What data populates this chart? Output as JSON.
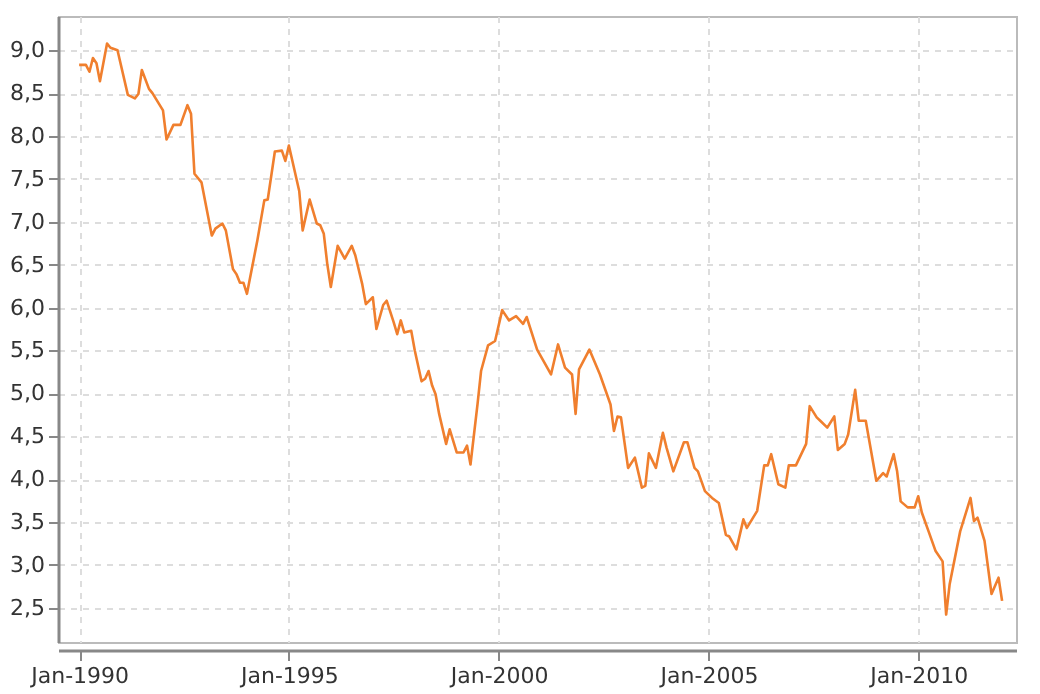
{
  "chart_data": {
    "type": "line",
    "x": [
      "1990-01",
      "1990-03",
      "1990-04",
      "1990-05",
      "1990-06",
      "1990-07",
      "1990-09",
      "1990-10",
      "1990-12",
      "1991-03",
      "1991-05",
      "1991-06",
      "1991-07",
      "1991-09",
      "1991-10",
      "1992-01",
      "1992-02",
      "1992-04",
      "1992-06",
      "1992-08",
      "1992-09",
      "1992-10",
      "1992-12",
      "1993-03",
      "1993-04",
      "1993-06",
      "1993-07",
      "1993-09",
      "1993-10",
      "1993-11",
      "1993-12",
      "1994-01",
      "1994-04",
      "1994-06",
      "1994-07",
      "1994-09",
      "1994-11",
      "1994-12",
      "1995-01",
      "1995-04",
      "1995-05",
      "1995-07",
      "1995-09",
      "1995-10",
      "1995-11",
      "1995-12",
      "1996-01",
      "1996-03",
      "1996-05",
      "1996-07",
      "1996-08",
      "1996-10",
      "1996-11",
      "1997-01",
      "1997-02",
      "1997-04",
      "1997-05",
      "1997-07",
      "1997-08",
      "1997-09",
      "1997-10",
      "1997-12",
      "1998-01",
      "1998-03",
      "1998-04",
      "1998-05",
      "1998-06",
      "1998-07",
      "1998-08",
      "1998-10",
      "1998-11",
      "1999-01",
      "1999-03",
      "1999-04",
      "1999-05",
      "1999-07",
      "1999-08",
      "1999-10",
      "1999-12",
      "2000-02",
      "2000-04",
      "2000-06",
      "2000-08",
      "2000-09",
      "2000-12",
      "2001-04",
      "2001-06",
      "2001-08",
      "2001-10",
      "2001-11",
      "2001-12",
      "2002-03",
      "2002-06",
      "2002-09",
      "2002-10",
      "2002-11",
      "2002-12",
      "2003-02",
      "2003-04",
      "2003-06",
      "2003-07",
      "2003-08",
      "2003-10",
      "2003-12",
      "2004-01",
      "2004-03",
      "2004-06",
      "2004-07",
      "2004-09",
      "2004-10",
      "2004-12",
      "2005-02",
      "2005-04",
      "2005-06",
      "2005-07",
      "2005-09",
      "2005-11",
      "2005-12",
      "2006-03",
      "2006-05",
      "2006-06",
      "2006-07",
      "2006-09",
      "2006-11",
      "2006-12",
      "2007-02",
      "2007-05",
      "2007-06",
      "2007-08",
      "2007-09",
      "2007-11",
      "2008-01",
      "2008-02",
      "2008-04",
      "2008-05",
      "2008-07",
      "2008-08",
      "2008-10",
      "2009-01",
      "2009-03",
      "2009-04",
      "2009-06",
      "2009-07",
      "2009-08",
      "2009-10",
      "2009-12",
      "2010-01",
      "2010-02",
      "2010-04",
      "2010-06",
      "2010-08",
      "2010-09",
      "2010-10",
      "2011-01",
      "2011-04",
      "2011-05",
      "2011-06",
      "2011-08",
      "2011-10",
      "2011-12",
      "2012-01"
    ],
    "series": [
      {
        "color": "#f07f2e",
        "values": [
          8.83,
          8.83,
          8.75,
          8.91,
          8.85,
          8.64,
          9.08,
          9.03,
          9.0,
          8.48,
          8.44,
          8.49,
          8.77,
          8.55,
          8.5,
          8.3,
          7.96,
          8.13,
          8.13,
          8.36,
          8.26,
          7.56,
          7.46,
          6.84,
          6.92,
          6.98,
          6.9,
          6.45,
          6.39,
          6.29,
          6.29,
          6.16,
          6.78,
          7.25,
          7.26,
          7.82,
          7.83,
          7.71,
          7.89,
          7.36,
          6.9,
          7.26,
          6.98,
          6.96,
          6.86,
          6.51,
          6.24,
          6.72,
          6.57,
          6.72,
          6.61,
          6.27,
          6.04,
          6.12,
          5.75,
          6.03,
          6.08,
          5.83,
          5.69,
          5.85,
          5.71,
          5.73,
          5.5,
          5.14,
          5.17,
          5.26,
          5.09,
          4.99,
          4.76,
          4.41,
          4.58,
          4.31,
          4.31,
          4.39,
          4.17,
          4.87,
          5.26,
          5.56,
          5.61,
          5.97,
          5.85,
          5.9,
          5.81,
          5.89,
          5.51,
          5.22,
          5.57,
          5.3,
          5.22,
          4.76,
          5.28,
          5.51,
          5.22,
          4.87,
          4.56,
          4.73,
          4.72,
          4.13,
          4.25,
          3.9,
          3.92,
          4.3,
          4.13,
          4.54,
          4.37,
          4.09,
          4.43,
          4.43,
          4.13,
          4.09,
          3.86,
          3.78,
          3.72,
          3.35,
          3.33,
          3.18,
          3.53,
          3.43,
          3.63,
          4.16,
          4.16,
          4.29,
          3.94,
          3.9,
          4.16,
          4.16,
          4.41,
          4.85,
          4.72,
          4.68,
          4.6,
          4.73,
          4.34,
          4.41,
          4.52,
          5.04,
          4.68,
          4.68,
          3.98,
          4.07,
          4.03,
          4.29,
          4.09,
          3.74,
          3.67,
          3.67,
          3.8,
          3.61,
          3.39,
          3.16,
          3.04,
          2.42,
          2.77,
          3.39,
          3.78,
          3.51,
          3.55,
          3.28,
          2.66,
          2.85,
          2.58
        ]
      }
    ],
    "xlim": [
      "1989-07",
      "2012-05"
    ],
    "xticks": [
      {
        "value": "1990-01",
        "label": "Jan-1990"
      },
      {
        "value": "1995-01",
        "label": "Jan-1995"
      },
      {
        "value": "2000-01",
        "label": "Jan-2000"
      },
      {
        "value": "2005-01",
        "label": "Jan-2005"
      },
      {
        "value": "2010-01",
        "label": "Jan-2010"
      }
    ],
    "ylim": [
      2.1,
      9.4
    ],
    "yticks": [
      {
        "value": 2.5,
        "label": "2,5"
      },
      {
        "value": 3,
        "label": "3,0"
      },
      {
        "value": 3.5,
        "label": "3,5"
      },
      {
        "value": 4,
        "label": "4,0"
      },
      {
        "value": 4.5,
        "label": "4,5"
      },
      {
        "value": 5,
        "label": "5,0"
      },
      {
        "value": 5.5,
        "label": "5,5"
      },
      {
        "value": 6,
        "label": "6,0"
      },
      {
        "value": 6.5,
        "label": "6,5"
      },
      {
        "value": 7,
        "label": "7,0"
      },
      {
        "value": 7.5,
        "label": "7,5"
      },
      {
        "value": 8,
        "label": "8,0"
      },
      {
        "value": 8.5,
        "label": "8,5"
      },
      {
        "value": 9,
        "label": "9,0"
      }
    ],
    "grid": true,
    "legend": false,
    "marker": "none",
    "line_style": "solid"
  }
}
